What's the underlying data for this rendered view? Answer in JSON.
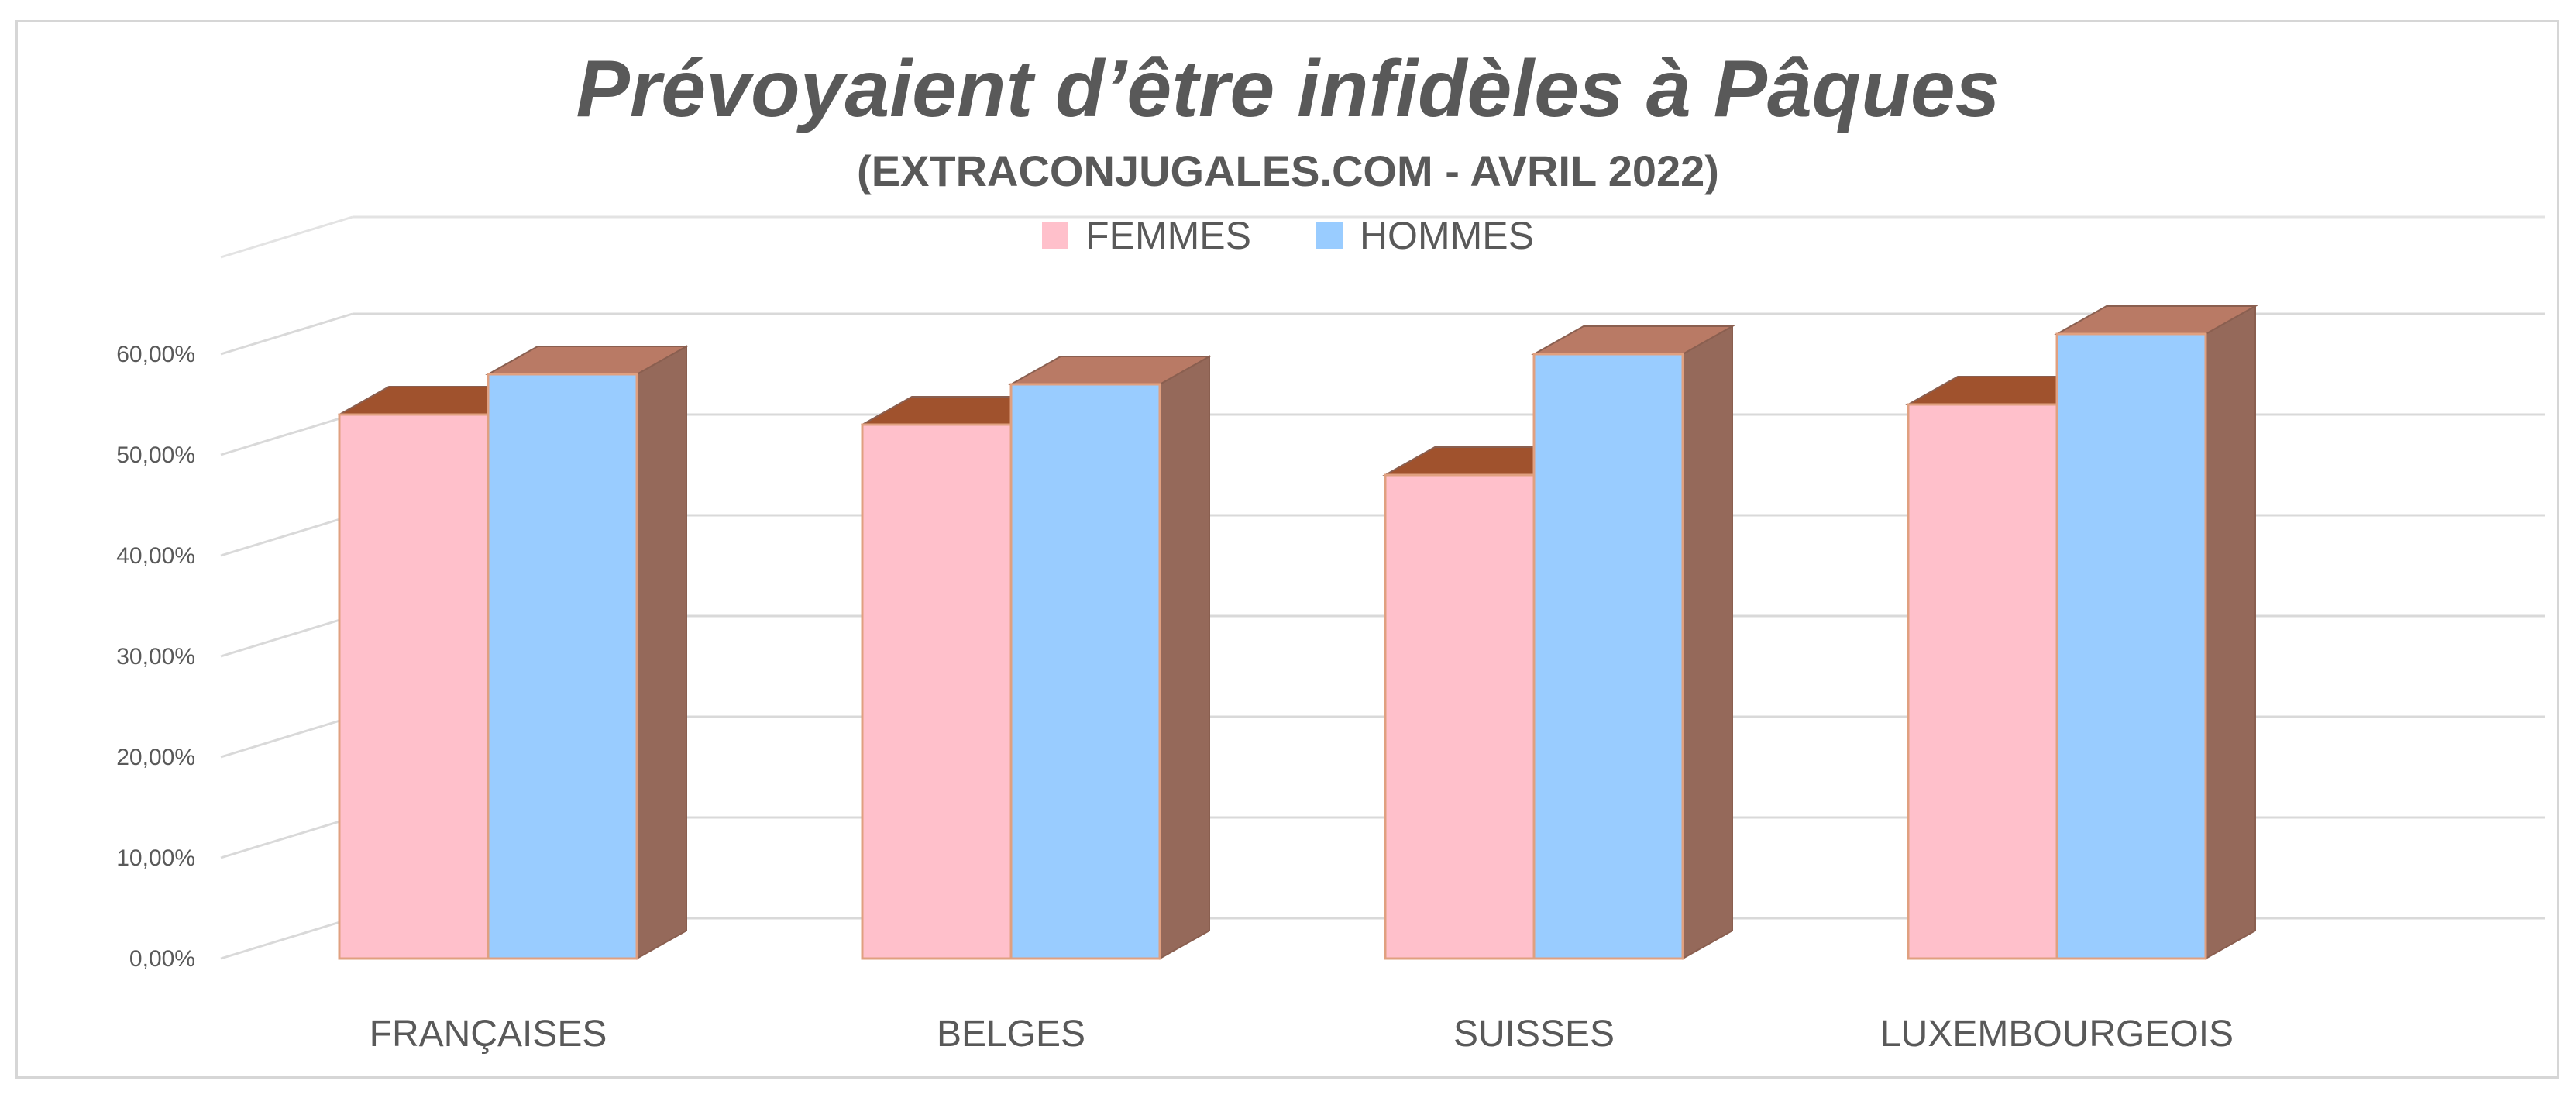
{
  "chart_data": {
    "type": "bar",
    "title": "Prévoyaient d’être infidèles à Pâques",
    "subtitle": "(EXTRACONJUGALES.COM  -  AVRIL 2022)",
    "categories": [
      "FRANÇAISES",
      "BELGES",
      "SUISSES",
      "LUXEMBOURGEOIS"
    ],
    "series": [
      {
        "name": "FEMMES",
        "values": [
          0.54,
          0.53,
          0.48,
          0.55
        ],
        "color": "#ffc0cb",
        "top_color": "#a0522d",
        "side_color": "#95695a"
      },
      {
        "name": "HOMMES",
        "values": [
          0.58,
          0.57,
          0.6,
          0.62
        ],
        "color": "#99ccff",
        "top_color": "#b97a65",
        "side_color": "#95695a"
      }
    ],
    "ylim": [
      0,
      0.6
    ],
    "yticks": [
      "0,00%",
      "10,00%",
      "20,00%",
      "30,00%",
      "40,00%",
      "50,00%",
      "60,00%"
    ],
    "grid": true,
    "legend_position": "top",
    "bar_style": "3d"
  }
}
